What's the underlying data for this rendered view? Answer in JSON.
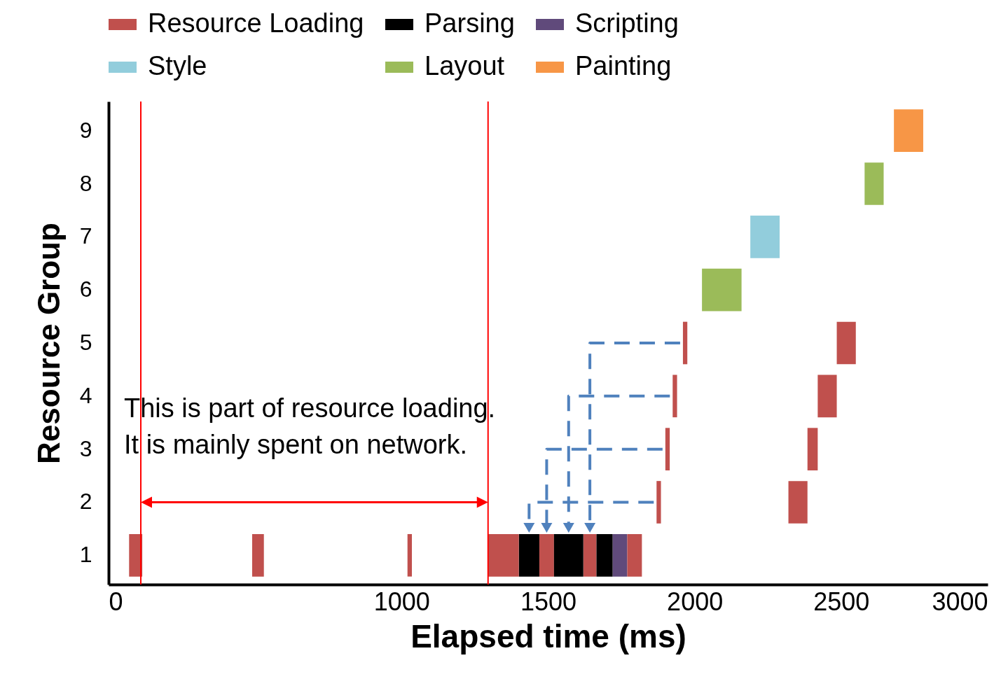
{
  "chart_data": {
    "type": "bar",
    "orientation": "horizontal",
    "xlabel": "Elapsed time (ms)",
    "ylabel": "Resource Group",
    "categories": [
      "9",
      "8",
      "7",
      "6",
      "5",
      "4",
      "3",
      "2",
      "1"
    ],
    "xlim": [
      0,
      3000
    ],
    "xticks": [
      0,
      1000,
      1500,
      2000,
      2500,
      3000
    ],
    "legend": "top",
    "grid": false,
    "series": [
      {
        "name": "Resource Loading",
        "color": "#c0504d",
        "values": [
          null,
          null,
          null,
          null,
          15,
          15,
          15,
          15,
          45
        ],
        "base": [
          null,
          null,
          null,
          null,
          1960,
          1925,
          1900,
          1870,
          70
        ]
      },
      {
        "name": "Parsing",
        "color": "#000000",
        "values": [
          null,
          null,
          null,
          null,
          null,
          null,
          null,
          null,
          70
        ],
        "base": [
          null,
          null,
          null,
          null,
          null,
          null,
          null,
          null,
          1400
        ]
      },
      {
        "name": "Scripting",
        "color": "#604a7b",
        "values": [
          null,
          null,
          null,
          null,
          null,
          null,
          null,
          null,
          50
        ],
        "base": [
          null,
          null,
          null,
          null,
          null,
          null,
          null,
          null,
          1720
        ]
      },
      {
        "name": "Style",
        "color": "#92cddc",
        "values": [
          null,
          null,
          100,
          null,
          null,
          null,
          null,
          null,
          null
        ],
        "base": [
          null,
          null,
          2190,
          null,
          null,
          null,
          null,
          null,
          null
        ]
      },
      {
        "name": "Layout",
        "color": "#9bbb59",
        "values": [
          null,
          65,
          null,
          135,
          null,
          null,
          null,
          null,
          null
        ],
        "base": [
          null,
          2580,
          null,
          2025,
          null,
          null,
          null,
          null,
          null
        ]
      },
      {
        "name": "Painting",
        "color": "#f79646",
        "values": [
          100,
          null,
          null,
          null,
          null,
          null,
          null,
          null,
          null
        ],
        "base": [
          2680,
          null,
          null,
          null,
          null,
          null,
          null,
          null,
          null
        ]
      },
      {
        "color": "#c0504d",
        "values": [
          null,
          null,
          null,
          null,
          65,
          65,
          35,
          65,
          40
        ],
        "base": [
          null,
          null,
          null,
          null,
          2485,
          2420,
          2385,
          2320,
          490
        ]
      },
      {
        "color": "#c0504d",
        "values": [
          null,
          null,
          null,
          null,
          null,
          null,
          null,
          null,
          15
        ],
        "base": [
          null,
          null,
          null,
          null,
          null,
          null,
          null,
          null,
          1020
        ]
      },
      {
        "color": "#c0504d",
        "values": [
          null,
          null,
          null,
          null,
          null,
          null,
          null,
          null,
          105
        ],
        "base": [
          null,
          null,
          null,
          null,
          null,
          null,
          null,
          null,
          1295
        ]
      },
      {
        "color": "#c0504d",
        "values": [
          null,
          null,
          null,
          null,
          null,
          null,
          null,
          null,
          50
        ],
        "base": [
          null,
          null,
          null,
          null,
          null,
          null,
          null,
          null,
          1470
        ]
      },
      {
        "color": "#c0504d",
        "values": [
          null,
          null,
          null,
          null,
          null,
          null,
          null,
          null,
          45
        ],
        "base": [
          null,
          null,
          null,
          null,
          null,
          null,
          null,
          null,
          1620
        ]
      },
      {
        "color": "#c0504d",
        "values": [
          null,
          null,
          null,
          null,
          null,
          null,
          null,
          null,
          50
        ],
        "base": [
          null,
          null,
          null,
          null,
          null,
          null,
          null,
          null,
          1770
        ]
      },
      {
        "color": "#000000",
        "values": [
          null,
          null,
          null,
          null,
          null,
          null,
          null,
          null,
          100
        ],
        "base": [
          null,
          null,
          null,
          null,
          null,
          null,
          null,
          null,
          1520
        ]
      },
      {
        "color": "#000000",
        "values": [
          null,
          null,
          null,
          null,
          null,
          null,
          null,
          null,
          55
        ],
        "base": [
          null,
          null,
          null,
          null,
          null,
          null,
          null,
          null,
          1665
        ]
      }
    ],
    "ref_lines": [
      {
        "axis": "x",
        "value": 110,
        "color": "#ff0000"
      },
      {
        "axis": "x",
        "value": 1295,
        "color": "#ff0000"
      }
    ],
    "annotations": [
      "This is part of resource loading.",
      "It is mainly spent on network."
    ]
  }
}
